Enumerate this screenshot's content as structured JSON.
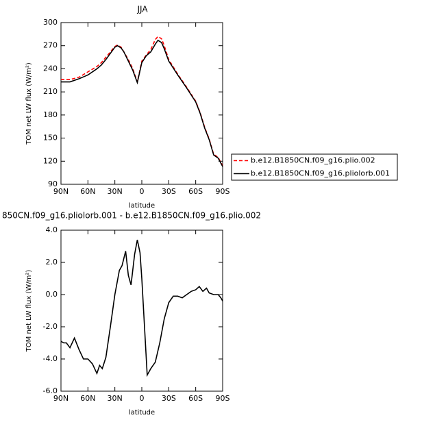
{
  "chart_data": [
    {
      "type": "line",
      "title": "JJA",
      "xlabel": "latitude",
      "ylabel": "TOM net LW flux (W/m²)",
      "x": [
        90,
        80,
        70,
        60,
        50,
        45,
        40,
        35,
        30,
        27,
        23,
        20,
        15,
        10,
        5,
        0,
        -5,
        -10,
        -15,
        -18,
        -22,
        -25,
        -30,
        -40,
        -50,
        -60,
        -65,
        -70,
        -75,
        -80,
        -85,
        -90
      ],
      "series": [
        {
          "name": "b.e12.B1850CN.f09_g16.plio.002",
          "color": "#ff0000",
          "linestyle": "dashed",
          "values": [
            226,
            226,
            229,
            236,
            243,
            248,
            255,
            262,
            269,
            271,
            268,
            262,
            252,
            240,
            223,
            250,
            258,
            265,
            278,
            282,
            279,
            270,
            252,
            233,
            216,
            198,
            183,
            164,
            149,
            129,
            125,
            114
          ]
        },
        {
          "name": "b.e12.B1850CN.f09_g16.pliolorb.001",
          "color": "#000000",
          "linestyle": "solid",
          "values": [
            223,
            223,
            227,
            232,
            240,
            245,
            252,
            260,
            268,
            270,
            267,
            262,
            250,
            238,
            222,
            248,
            257,
            262,
            272,
            277,
            274,
            266,
            250,
            232,
            215,
            197,
            182,
            163,
            148,
            128,
            124,
            113
          ]
        }
      ],
      "xlim": [
        90,
        -90
      ],
      "ylim": [
        90,
        300
      ],
      "xticks": [
        {
          "value": 90,
          "label": "90N"
        },
        {
          "value": 60,
          "label": "60N"
        },
        {
          "value": 30,
          "label": "30N"
        },
        0,
        {
          "value": -30,
          "label": "30S"
        },
        {
          "value": -60,
          "label": "60S"
        },
        {
          "value": -90,
          "label": "90S"
        }
      ],
      "yticks": [
        90,
        120,
        150,
        180,
        210,
        240,
        270,
        300
      ],
      "legend": "right"
    },
    {
      "type": "line",
      "title": "850CN.f09_g16.pliolorb.001 - b.e12.B1850CN.f09_g16.plio.002",
      "xlabel": "latitude",
      "ylabel": "TOM net LW flux (W/m²)",
      "x": [
        90,
        87,
        84,
        80,
        75,
        70,
        65,
        60,
        55,
        50,
        47,
        44,
        40,
        35,
        30,
        25,
        22,
        18,
        15,
        12,
        8,
        5,
        2,
        0,
        -3,
        -6,
        -10,
        -15,
        -20,
        -25,
        -30,
        -35,
        -40,
        -45,
        -50,
        -55,
        -60,
        -64,
        -68,
        -72,
        -75,
        -80,
        -85,
        -88,
        -90
      ],
      "values": [
        -2.9,
        -3.0,
        -3.0,
        -3.3,
        -2.7,
        -3.4,
        -4.0,
        -4.0,
        -4.3,
        -4.9,
        -4.4,
        -4.6,
        -3.9,
        -2.0,
        0.0,
        1.5,
        1.8,
        2.7,
        1.2,
        0.6,
        2.5,
        3.4,
        2.6,
        1.0,
        -2.0,
        -5.0,
        -4.6,
        -4.2,
        -3.0,
        -1.5,
        -0.5,
        -0.1,
        -0.1,
        -0.2,
        0.0,
        0.2,
        0.3,
        0.5,
        0.2,
        0.4,
        0.1,
        0.0,
        0.0,
        -0.2,
        -0.4
      ],
      "color": "#000000",
      "xlim": [
        90,
        -90
      ],
      "ylim": [
        -6,
        4
      ],
      "xticks": [
        {
          "value": 90,
          "label": "90N"
        },
        {
          "value": 60,
          "label": "60N"
        },
        {
          "value": 30,
          "label": "30N"
        },
        0,
        {
          "value": -30,
          "label": "30S"
        },
        {
          "value": -60,
          "label": "60S"
        },
        {
          "value": -90,
          "label": "90S"
        }
      ],
      "yticks": [
        {
          "value": -6,
          "label": "-6.0"
        },
        {
          "value": -4,
          "label": "-4.0"
        },
        {
          "value": -2,
          "label": "-2.0"
        },
        {
          "value": 0,
          "label": "0.0"
        },
        {
          "value": 2,
          "label": "2.0"
        },
        {
          "value": 4,
          "label": "4.0"
        }
      ]
    }
  ]
}
